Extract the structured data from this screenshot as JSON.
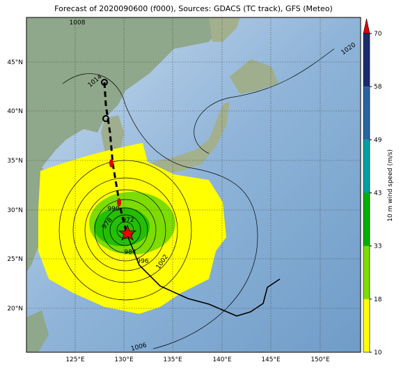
{
  "title": "Forecast of 2020090600 (f000), Sources: GDACS (TC track), GFS (Meteo)",
  "lat_labels": [
    "45°N",
    "40°N",
    "35°N",
    "30°N",
    "25°N",
    "20°N"
  ],
  "lon_labels": [
    "125°E",
    "130°E",
    "135°E",
    "140°E",
    "145°E",
    "150°E"
  ],
  "colorbar": {
    "label": "10 m wind speed (m/s)",
    "ticks": [
      10,
      18,
      33,
      43,
      49,
      58,
      70
    ]
  },
  "contour_labels": [
    "1008",
    "1014",
    "1020",
    "990",
    "978",
    "972",
    "984",
    "996",
    "1002",
    "1006"
  ]
}
